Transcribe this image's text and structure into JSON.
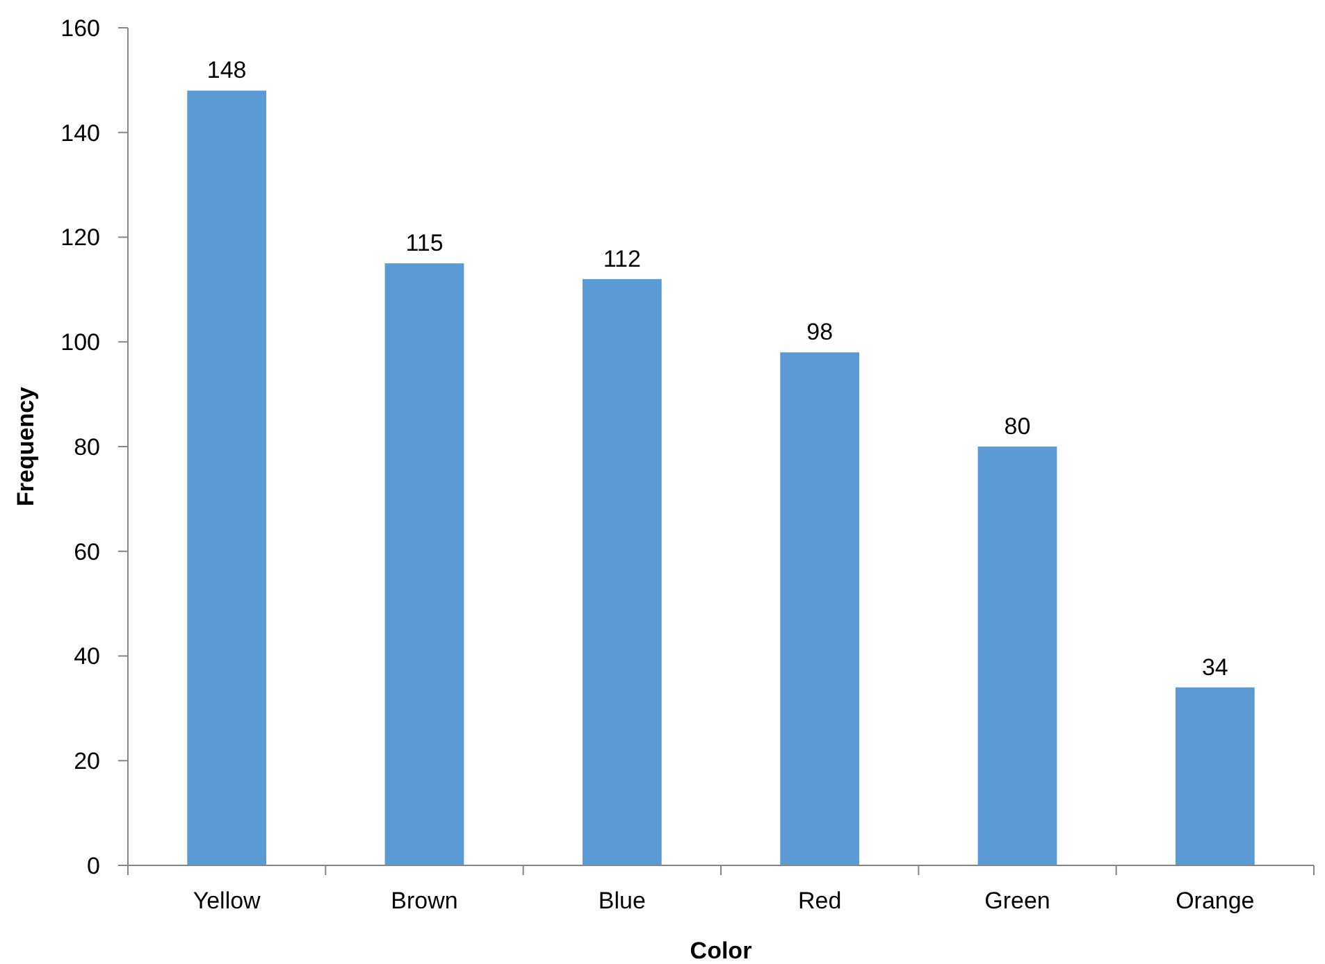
{
  "chart_data": {
    "type": "bar",
    "xlabel": "Color",
    "ylabel": "Frequency",
    "categories": [
      "Yellow",
      "Brown",
      "Blue",
      "Red",
      "Green",
      "Orange"
    ],
    "values": [
      148,
      115,
      112,
      98,
      80,
      34
    ],
    "color": "#5b9bd5",
    "ylim": [
      0,
      160
    ],
    "yticks": [
      0,
      20,
      40,
      60,
      80,
      100,
      120,
      140,
      160
    ],
    "grid": false,
    "data_labels": true
  }
}
